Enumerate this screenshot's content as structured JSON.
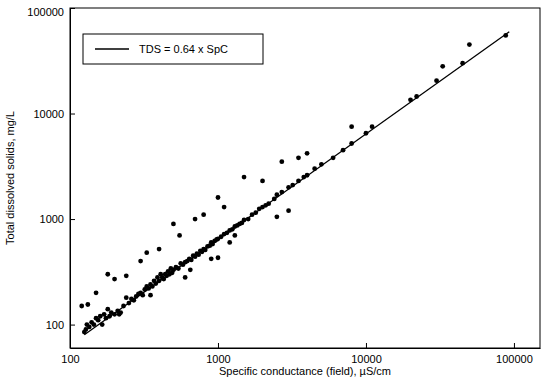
{
  "chart_data": {
    "type": "scatter",
    "log": true,
    "grid": false,
    "legend": "upper left",
    "x_label": "Specific conductance (field), µS/cm",
    "y_label": "Total dissolved solids, mg/L",
    "xlim": [
      100,
      150000
    ],
    "ylim": [
      60,
      100000
    ],
    "xticks": [
      100,
      1000,
      10000,
      100000
    ],
    "yticks": [
      100,
      1000,
      10000,
      100000
    ],
    "series": [
      {
        "name": "TDS = 0.64 x SpC",
        "type": "line",
        "color": "#000000",
        "line_style": "solid",
        "x": [
          125,
          93000
        ],
        "values": [
          80,
          59520
        ]
      },
      {
        "type": "scatter",
        "color": "#000000",
        "marker": "circle",
        "x": [
          120,
          125,
          128,
          130,
          132,
          135,
          140,
          145,
          150,
          155,
          160,
          165,
          170,
          175,
          180,
          185,
          190,
          200,
          210,
          215,
          220,
          230,
          240,
          250,
          260,
          270,
          280,
          290,
          300,
          310,
          320,
          330,
          340,
          350,
          360,
          370,
          380,
          390,
          400,
          410,
          420,
          430,
          440,
          450,
          460,
          470,
          480,
          490,
          500,
          520,
          540,
          560,
          580,
          600,
          620,
          640,
          660,
          680,
          700,
          720,
          740,
          760,
          780,
          800,
          820,
          850,
          880,
          900,
          920,
          950,
          980,
          1000,
          1050,
          1100,
          1150,
          1200,
          1250,
          1300,
          1350,
          1400,
          1450,
          1500,
          1600,
          1700,
          1800,
          1900,
          2000,
          2100,
          2200,
          2400,
          2500,
          2700,
          3000,
          3200,
          3500,
          3800,
          4000,
          4500,
          5000,
          6000,
          7000,
          8000,
          10000,
          11000,
          20000,
          22000,
          30000,
          33000,
          45000,
          50000,
          88000,
          150,
          180,
          200,
          240,
          300,
          330,
          400,
          500,
          550,
          700,
          800,
          1000,
          1100,
          1200,
          900,
          600,
          350,
          650,
          1000,
          2500,
          3000,
          1500,
          2000,
          2700,
          3500,
          4000,
          8000,
          1300
        ],
        "values": [
          150,
          85,
          90,
          100,
          155,
          95,
          105,
          100,
          115,
          110,
          120,
          100,
          125,
          115,
          140,
          120,
          130,
          125,
          135,
          125,
          130,
          150,
          180,
          160,
          175,
          170,
          185,
          195,
          200,
          190,
          215,
          230,
          220,
          240,
          230,
          260,
          245,
          280,
          260,
          300,
          280,
          270,
          300,
          290,
          320,
          300,
          340,
          310,
          330,
          350,
          340,
          380,
          370,
          390,
          400,
          420,
          410,
          450,
          440,
          470,
          460,
          500,
          490,
          520,
          510,
          550,
          560,
          600,
          580,
          620,
          640,
          650,
          680,
          720,
          740,
          780,
          800,
          850,
          870,
          900,
          920,
          980,
          1000,
          1100,
          1150,
          1250,
          1300,
          1350,
          1400,
          1550,
          1700,
          1800,
          2000,
          2100,
          2300,
          2500,
          2600,
          3000,
          3300,
          3800,
          4500,
          5200,
          6500,
          7500,
          13500,
          14500,
          20500,
          28000,
          30000,
          45000,
          55000,
          200,
          300,
          270,
          290,
          400,
          480,
          520,
          900,
          700,
          1000,
          1100,
          1600,
          1300,
          600,
          420,
          280,
          190,
          330,
          430,
          1050,
          1200,
          2500,
          2300,
          3500,
          3800,
          4200,
          7500,
          700
        ]
      }
    ]
  }
}
